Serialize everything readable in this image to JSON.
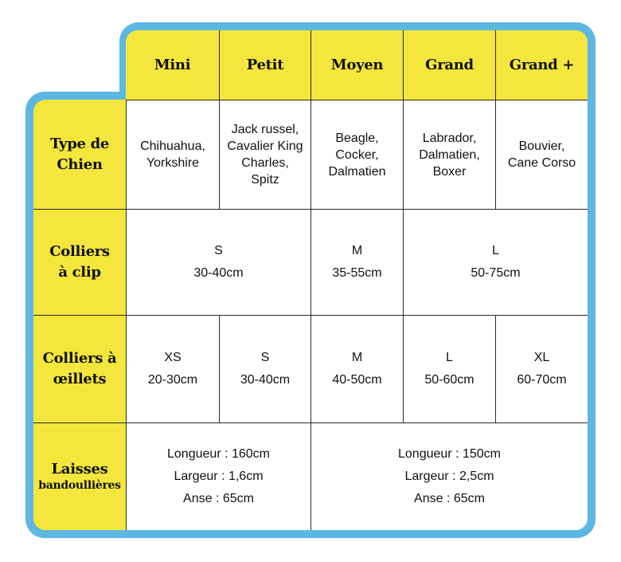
{
  "colors": {
    "border": "#5cb8e2",
    "header": "#f4e63c",
    "grid": "#2a2a2a"
  },
  "columns": [
    "Mini",
    "Petit",
    "Moyen",
    "Grand",
    "Grand +"
  ],
  "rows": {
    "type": {
      "label": "Type de Chien",
      "cells": [
        [
          "Chihuahua,",
          "Yorkshire"
        ],
        [
          "Jack russel,",
          "Cavalier King",
          "Charles,",
          "Spitz"
        ],
        [
          "Beagle,",
          "Cocker,",
          "Dalmatien"
        ],
        [
          "Labrador,",
          "Dalmatien,",
          "Boxer"
        ],
        [
          "Bouvier,",
          "Cane Corso"
        ]
      ]
    },
    "clip": {
      "label_1": "Colliers",
      "label_2": "à clip",
      "cells": [
        {
          "size": "S",
          "range": "30-40cm",
          "span": "Mini–Petit"
        },
        {
          "size": "M",
          "range": "35-55cm",
          "span": "Moyen"
        },
        {
          "size": "L",
          "range": "50-75cm",
          "span": "Grand–Grand +"
        }
      ]
    },
    "oeillets": {
      "label_1": "Colliers à",
      "label_2": "œillets",
      "cells": [
        {
          "size": "XS",
          "range": "20-30cm"
        },
        {
          "size": "S",
          "range": "30-40cm"
        },
        {
          "size": "M",
          "range": "40-50cm"
        },
        {
          "size": "L",
          "range": "50-60cm"
        },
        {
          "size": "XL",
          "range": "60-70cm"
        }
      ]
    },
    "laisses": {
      "label_1": "Laisses",
      "label_2": "bandoullières",
      "cells": [
        [
          "Longueur : 160cm",
          "Largeur : 1,6cm",
          "Anse : 65cm"
        ],
        [
          "Longueur : 150cm",
          "Largeur : 2,5cm",
          "Anse : 65cm"
        ]
      ]
    }
  }
}
